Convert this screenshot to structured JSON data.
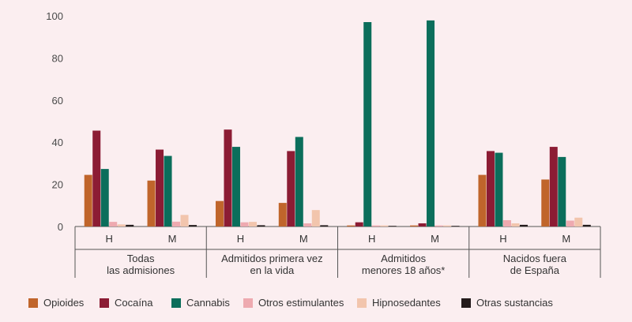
{
  "chart_data": {
    "type": "bar",
    "ylim": [
      0,
      100
    ],
    "yticks": [
      0,
      20,
      40,
      60,
      80,
      100
    ],
    "grid": false,
    "legend_position": "bottom",
    "groups": [
      {
        "label_lines": [
          "Todas",
          "las admisiones"
        ],
        "categories": [
          "H",
          "M"
        ]
      },
      {
        "label_lines": [
          "Admitidos primera vez",
          "en la vida"
        ],
        "categories": [
          "H",
          "M"
        ]
      },
      {
        "label_lines": [
          "Admitidos",
          "menores 18 años*"
        ],
        "categories": [
          "H",
          "M"
        ]
      },
      {
        "label_lines": [
          "Nacidos fuera",
          "de España"
        ],
        "categories": [
          "H",
          "M"
        ]
      }
    ],
    "categories": [
      "H",
      "M",
      "H",
      "M",
      "H",
      "M",
      "H",
      "M"
    ],
    "series": [
      {
        "name": "Opioides",
        "color": "#c0652b",
        "values": [
          24.5,
          21.8,
          12.1,
          11.2,
          0.5,
          0.5,
          24.5,
          22.3
        ]
      },
      {
        "name": "Cocaína",
        "color": "#8c1c34",
        "values": [
          45.5,
          36.5,
          46.0,
          35.8,
          2.0,
          1.5,
          35.8,
          37.8
        ]
      },
      {
        "name": "Cannabis",
        "color": "#0b6e5b",
        "values": [
          27.3,
          33.5,
          37.8,
          42.5,
          97.0,
          97.8,
          35.0,
          33.0
        ]
      },
      {
        "name": "Otros estimulantes",
        "color": "#eeaab0",
        "values": [
          2.2,
          2.3,
          2.0,
          1.5,
          0.5,
          0.5,
          3.0,
          2.8
        ]
      },
      {
        "name": "Hipnosedantes",
        "color": "#f2c5ad",
        "values": [
          1.0,
          5.5,
          2.2,
          7.8,
          0.5,
          0.5,
          1.5,
          4.2
        ]
      },
      {
        "name": "Otras sustancias",
        "color": "#231b1b",
        "values": [
          0.8,
          0.7,
          0.6,
          0.6,
          0.3,
          0.3,
          0.8,
          0.8
        ]
      }
    ]
  }
}
